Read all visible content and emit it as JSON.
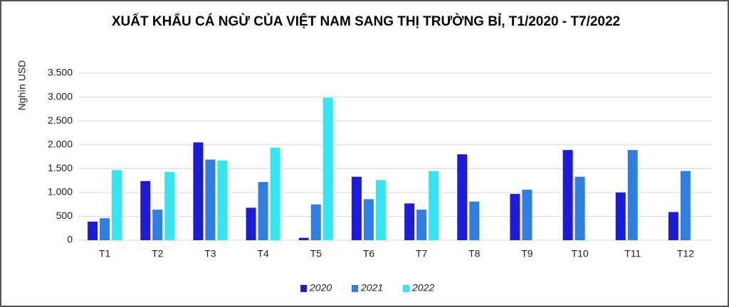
{
  "chart_data": {
    "type": "bar",
    "title": "XUẤT KHẨU CÁ NGỪ CỦA VIỆT NAM SANG THỊ TRƯỜNG BỈ, T1/2020 - T7/2022",
    "y_label": "Nghìn USD",
    "categories": [
      "T1",
      "T2",
      "T3",
      "T4",
      "T5",
      "T6",
      "T7",
      "T8",
      "T9",
      "T10",
      "T11",
      "T12"
    ],
    "series": [
      {
        "name": "2020",
        "color": "#1c1cd8",
        "values": [
          390,
          1240,
          2050,
          680,
          50,
          1330,
          770,
          1800,
          970,
          1890,
          1000,
          590
        ]
      },
      {
        "name": "2021",
        "color": "#2f7fe2",
        "values": [
          460,
          640,
          1690,
          1220,
          750,
          860,
          640,
          810,
          1060,
          1330,
          1890,
          1450
        ]
      },
      {
        "name": "2022",
        "color": "#33e6f2",
        "values": [
          1470,
          1430,
          1670,
          1940,
          2990,
          1260,
          1450,
          null,
          null,
          null,
          null,
          null
        ]
      }
    ],
    "ylim": [
      0,
      3500
    ],
    "yticks": [
      0,
      500,
      {
        "value": 1000,
        "label": "1.000"
      },
      {
        "value": 1500,
        "label": "1.500"
      },
      {
        "value": 2000,
        "label": "2.000"
      },
      {
        "value": 2500,
        "label": "2.500"
      },
      {
        "value": 3000,
        "label": "3.000"
      },
      {
        "value": 3500,
        "label": "3.500"
      }
    ],
    "grid": true,
    "legend": "bottom"
  }
}
